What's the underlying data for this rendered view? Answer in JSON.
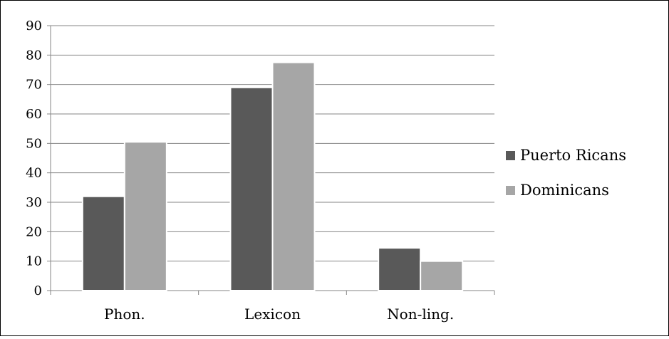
{
  "chart_data": {
    "type": "bar",
    "title": "",
    "xlabel": "",
    "ylabel": "",
    "categories": [
      "Phon.",
      "Lexicon",
      "Non-ling."
    ],
    "series": [
      {
        "name": "Puerto Ricans",
        "color": "#595959",
        "values": [
          32,
          69,
          14.5
        ]
      },
      {
        "name": "Dominicans",
        "color": "#a6a6a6",
        "values": [
          50.5,
          77.5,
          10
        ]
      }
    ],
    "ylim": [
      0,
      90
    ],
    "yticks": [
      0,
      10,
      20,
      30,
      40,
      50,
      60,
      70,
      80,
      90
    ],
    "grid": true,
    "legend": "right"
  }
}
